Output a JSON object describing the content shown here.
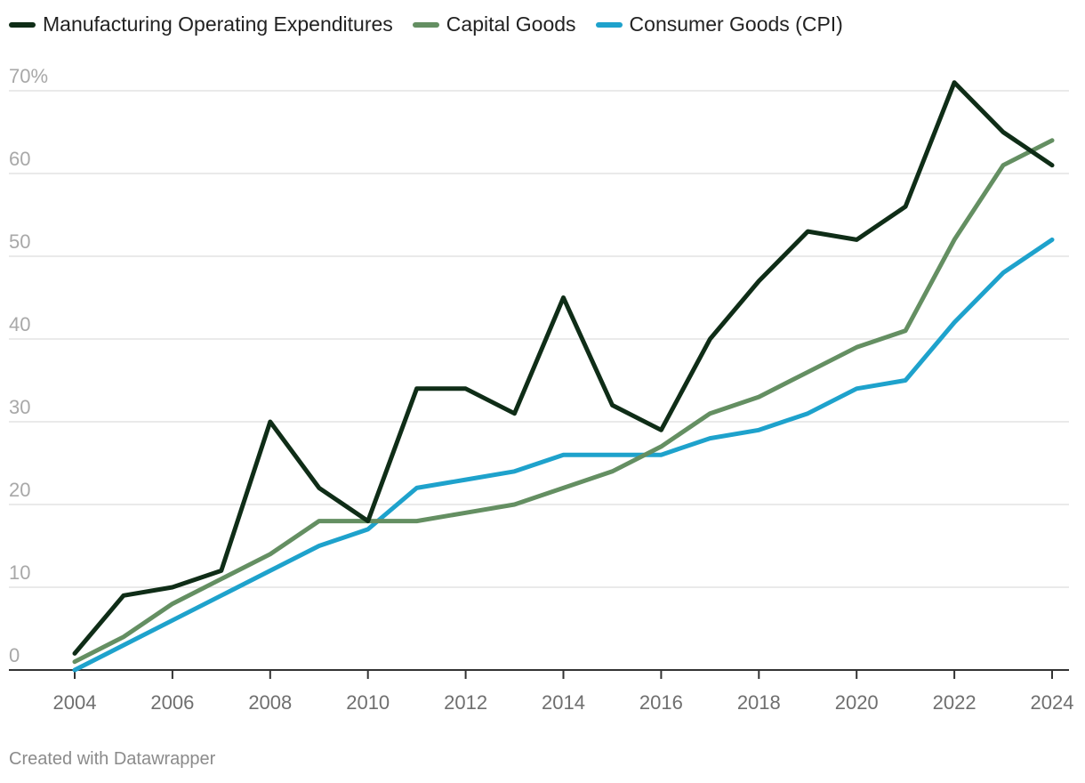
{
  "legend": [
    {
      "label": "Manufacturing Operating Expenditures",
      "color": "#0f2d17"
    },
    {
      "label": "Capital Goods",
      "color": "#648f62"
    },
    {
      "label": "Consumer Goods (CPI)",
      "color": "#1ea2cc"
    }
  ],
  "footer": {
    "credit": "Created with Datawrapper"
  },
  "chart_data": {
    "type": "line",
    "title": "",
    "xlabel": "",
    "ylabel": "",
    "ylim": [
      0,
      70
    ],
    "y_ticks": [
      0,
      10,
      20,
      30,
      40,
      50,
      60,
      70
    ],
    "y_tick_labels": [
      "0",
      "10",
      "20",
      "30",
      "40",
      "50",
      "60",
      "70%"
    ],
    "x_ticks": [
      2004,
      2006,
      2008,
      2010,
      2012,
      2014,
      2016,
      2018,
      2020,
      2022,
      2024
    ],
    "x_tick_labels": [
      "2004",
      "2006",
      "2008",
      "2010",
      "2012",
      "2014",
      "2016",
      "2018",
      "2020",
      "2022",
      "2024"
    ],
    "x": [
      2004,
      2005,
      2006,
      2007,
      2008,
      2009,
      2010,
      2011,
      2012,
      2013,
      2014,
      2015,
      2016,
      2017,
      2018,
      2019,
      2020,
      2021,
      2022,
      2023,
      2024
    ],
    "grid": true,
    "legend_position": "top-left",
    "series": [
      {
        "name": "Manufacturing Operating Expenditures",
        "color": "#0f2d17",
        "values": [
          2,
          9,
          10,
          12,
          30,
          22,
          18,
          34,
          34,
          31,
          45,
          32,
          29,
          40,
          47,
          53,
          52,
          56,
          71,
          65,
          61
        ]
      },
      {
        "name": "Capital Goods",
        "color": "#648f62",
        "values": [
          1,
          4,
          8,
          11,
          14,
          18,
          18,
          18,
          19,
          20,
          22,
          24,
          27,
          31,
          33,
          36,
          39,
          41,
          52,
          61,
          64
        ]
      },
      {
        "name": "Consumer Goods (CPI)",
        "color": "#1ea2cc",
        "values": [
          0,
          3,
          6,
          9,
          12,
          15,
          17,
          22,
          23,
          24,
          26,
          26,
          26,
          28,
          29,
          31,
          34,
          35,
          42,
          48,
          52
        ]
      }
    ]
  }
}
